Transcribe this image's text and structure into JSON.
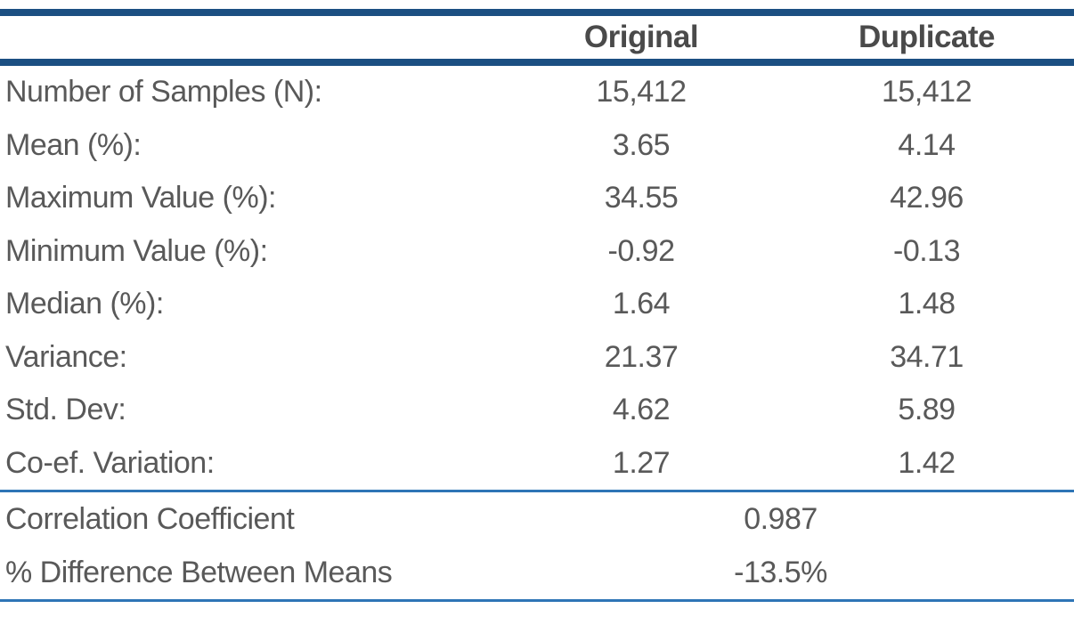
{
  "title": "Original vs Duplicate sample statistics table",
  "colors": {
    "thick_rule": "#1B4F82",
    "thin_rule": "#2E75B6",
    "body_text": "#595959",
    "header_text": "#4a4a4a",
    "background": "#ffffff"
  },
  "chart_data": {
    "type": "table",
    "columns": [
      "",
      "Original",
      "Duplicate"
    ],
    "rows": [
      {
        "label": "Number of Samples (N):",
        "original": "15,412",
        "duplicate": "15,412"
      },
      {
        "label": "Mean (%):",
        "original": "3.65",
        "duplicate": "4.14"
      },
      {
        "label": "Maximum Value (%):",
        "original": "34.55",
        "duplicate": "42.96"
      },
      {
        "label": "Minimum Value (%):",
        "original": "-0.92",
        "duplicate": "-0.13"
      },
      {
        "label": "Median (%):",
        "original": "1.64",
        "duplicate": "1.48"
      },
      {
        "label": "Variance:",
        "original": "21.37",
        "duplicate": "34.71"
      },
      {
        "label": "Std. Dev:",
        "original": "4.62",
        "duplicate": "5.89"
      },
      {
        "label": "Co-ef. Variation:",
        "original": "1.27",
        "duplicate": "1.42"
      }
    ],
    "summary_rows": [
      {
        "label": "Correlation Coefficient",
        "value": "0.987"
      },
      {
        "label": "% Difference Between Means",
        "value": "-13.5%"
      }
    ]
  }
}
